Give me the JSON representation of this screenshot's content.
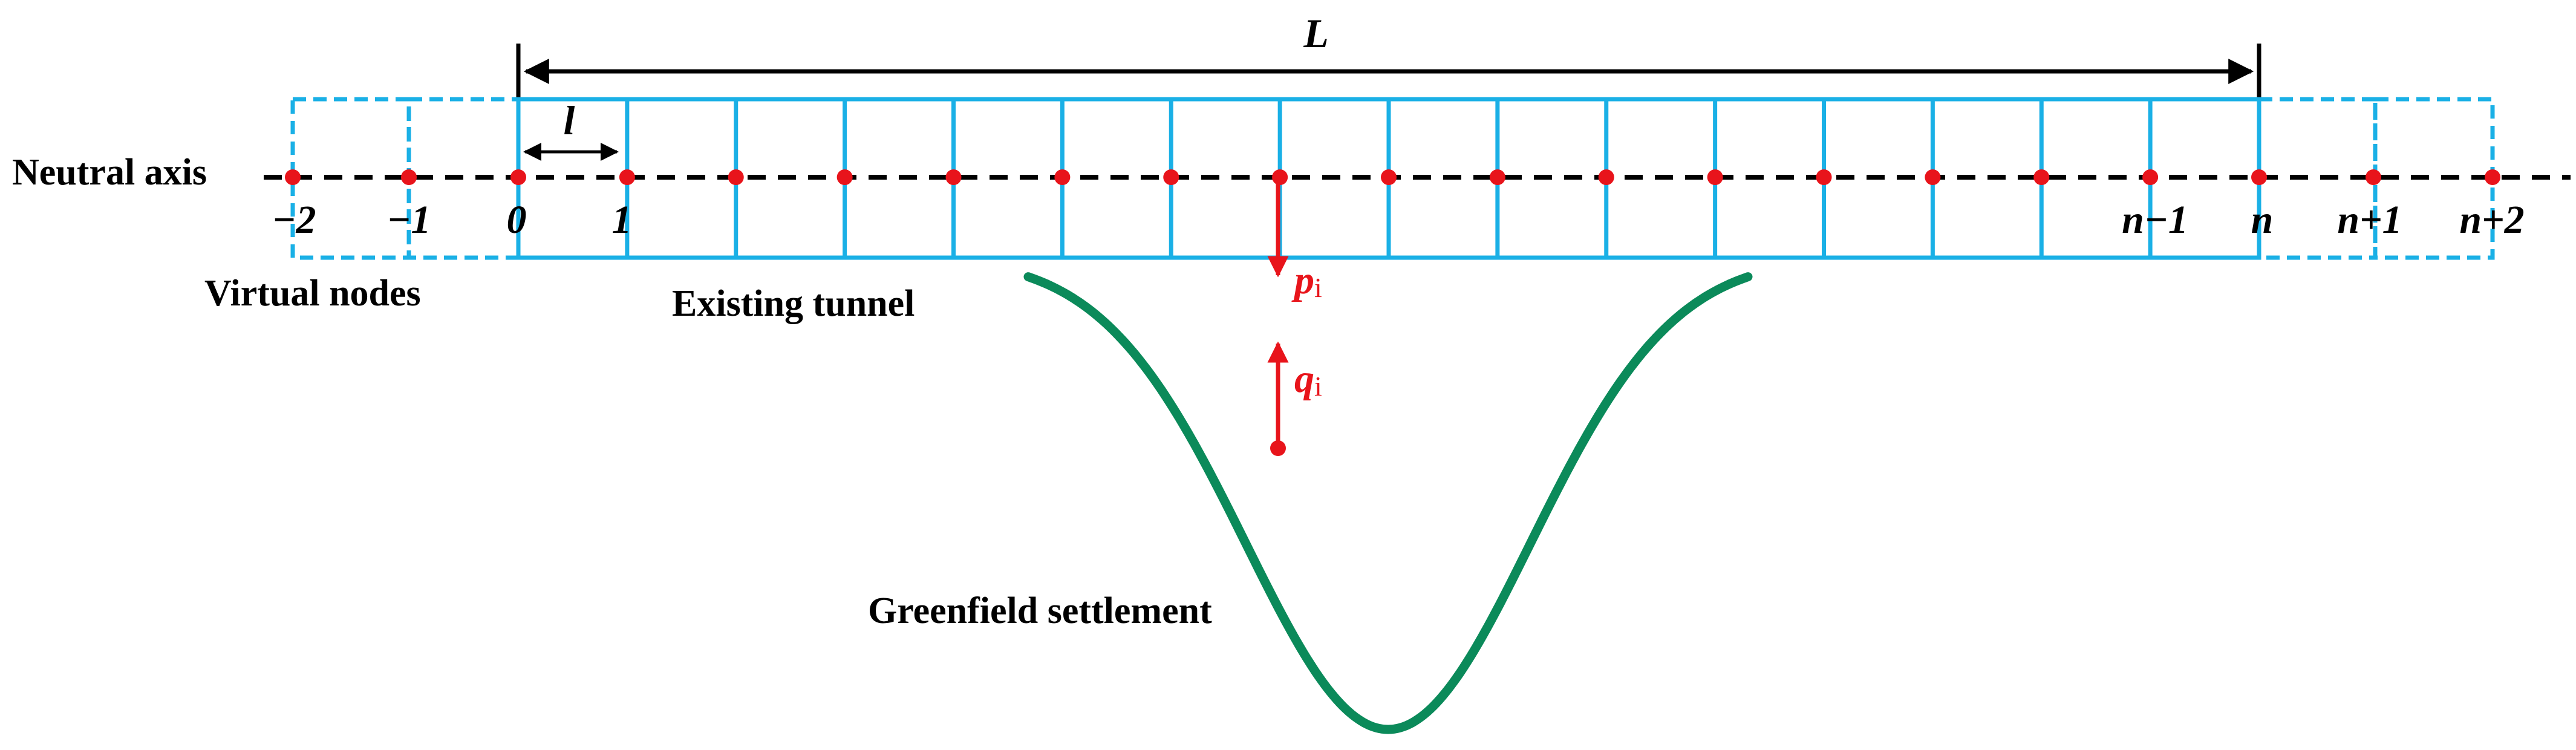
{
  "labels": {
    "length_total": "L",
    "element_length": "l",
    "neutral_axis": "Neutral axis",
    "virtual_nodes": "Virtual nodes",
    "existing_tunnel": "Existing tunnel",
    "greenfield_settlement": "Greenfield settlement",
    "p_symbol": "p",
    "p_subscript": "i",
    "q_symbol": "q",
    "q_subscript": "i"
  },
  "node_labels": [
    "−2",
    "−1",
    "0",
    "1",
    "n−1",
    "n",
    "n+1",
    "n+2"
  ],
  "colors": {
    "tunnel": "#1ab0e6",
    "virtual": "#1ab0e6",
    "node": "#e8141b",
    "settlement": "#0b8a5a",
    "force_arrow": "#e8141b",
    "dimension": "#000000",
    "axis": "#000000"
  },
  "model": {
    "tunnel_segments": 16,
    "virtual_nodes_each_side": 2
  }
}
